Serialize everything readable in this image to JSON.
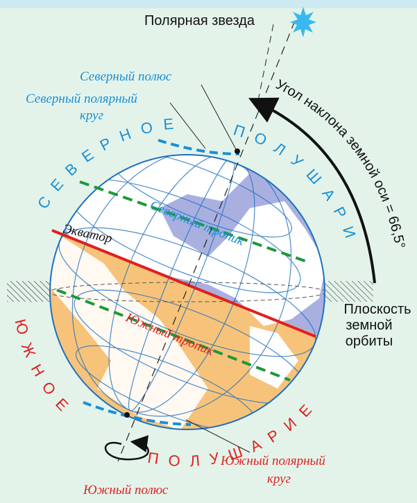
{
  "polar_star": "Полярная звезда",
  "north_pole": "Северный полюс",
  "north_polar_circle": [
    "Северный полярный",
    "круг"
  ],
  "north_hemisphere": [
    "СЕВЕРНОЕ",
    "ПОЛУШАРИЕ"
  ],
  "north_tropic": "Северный тропик",
  "equator": "Экватор",
  "axis_angle": "Угол наклона земной оси = 66,5°",
  "orbit_plane": [
    "Плоскость",
    "земной",
    "орбиты"
  ],
  "south_tropic": "Южный тропик",
  "south_hemisphere": [
    "ЮЖНОЕ",
    "ПОЛУШАРИЕ"
  ],
  "south_polar_circle": [
    "Южный полярный",
    "круг"
  ],
  "south_pole": "Южный полюс"
}
